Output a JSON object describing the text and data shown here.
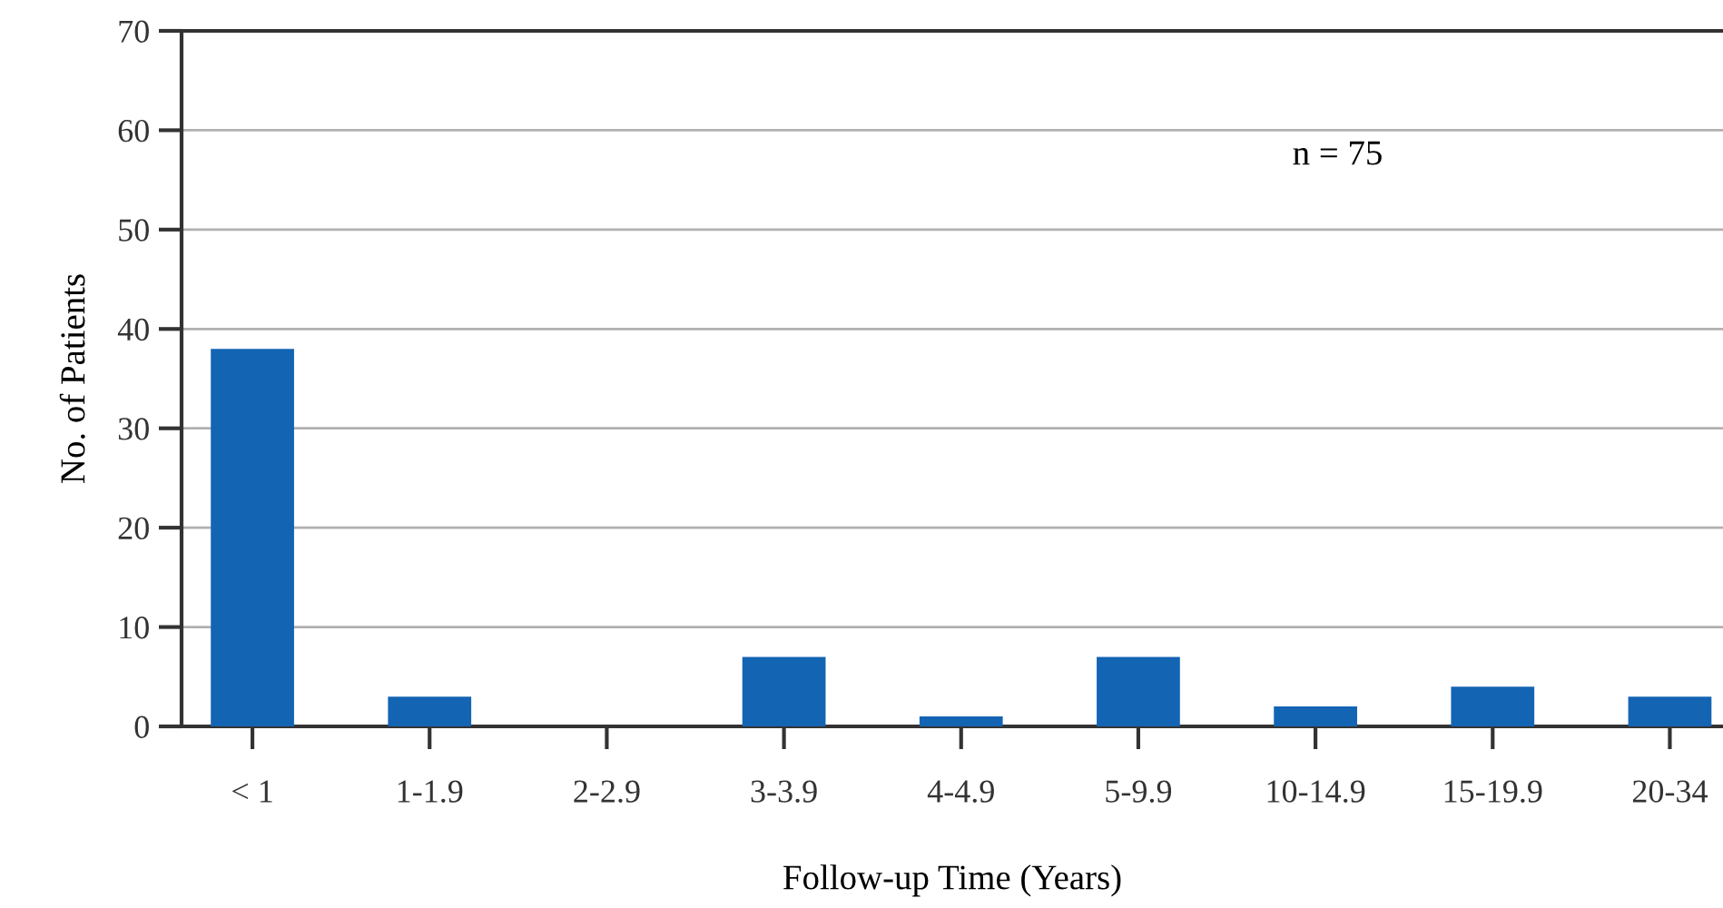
{
  "chart_data": {
    "type": "bar",
    "xlabel": "Follow-up Time (Years)",
    "ylabel": "No. of Patients",
    "categories": [
      "< 1",
      "1-1.9",
      "2-2.9",
      "3-3.9",
      "4-4.9",
      "5-9.9",
      "10-14.9",
      "15-19.9",
      "20-34"
    ],
    "values": [
      38,
      3,
      0,
      7,
      1,
      7,
      2,
      4,
      3
    ],
    "color": "#1464b4",
    "ylim": [
      0,
      70
    ],
    "yticks": [
      0,
      10,
      20,
      30,
      40,
      50,
      60,
      70
    ],
    "grid": "y",
    "annotations": [
      "n = 75"
    ]
  }
}
